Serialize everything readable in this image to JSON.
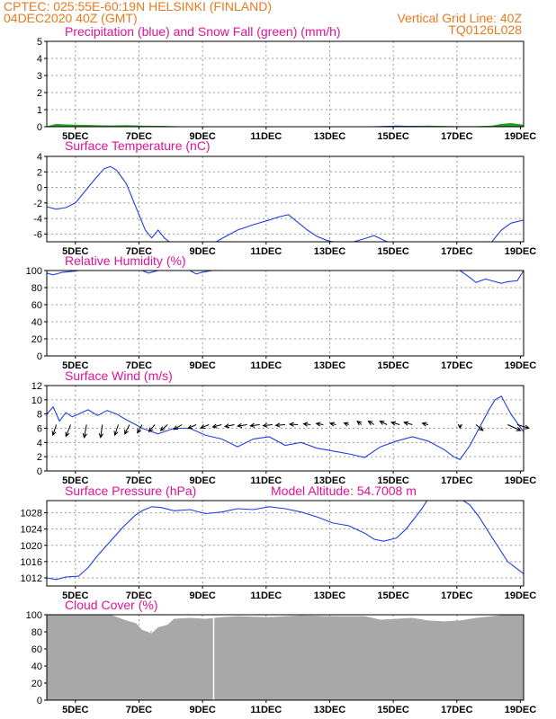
{
  "header": {
    "station": "CPTEC:   025:55E-60:19N   HELSINKI (FINLAND)",
    "run": "04DEC2020 40Z (GMT)",
    "grid_note": "Vertical Grid Line: 40Z",
    "model_code": "TQ0126L028"
  },
  "colors": {
    "blue": "#1f3fe0",
    "green": "#1fa01f",
    "gray": "#a8a8a8",
    "header": "#e87a1e",
    "title": "#e0129a"
  },
  "chart_data": [
    {
      "id": "precip",
      "type": "area",
      "title": "Precipitation (blue) and Snow Fall (green) (mm/h)",
      "x_tick_labels": [
        "5DEC",
        "7DEC",
        "9DEC",
        "11DEC",
        "13DEC",
        "15DEC",
        "17DEC",
        "19DEC"
      ],
      "ylim": [
        0,
        5
      ],
      "y_ticks": [
        0,
        1,
        2,
        3,
        4,
        5
      ],
      "series": [
        {
          "color": "green",
          "x": [
            4.0,
            4.3,
            4.6,
            5.0,
            5.5,
            6.0,
            6.5,
            7.0,
            7.5,
            8.0,
            8.5,
            9.0,
            9.5,
            10.0,
            10.5,
            11.0,
            11.5,
            12.0,
            12.5,
            13.0,
            13.5,
            14.0,
            14.5,
            15.0,
            15.5,
            16.0,
            16.5,
            17.0,
            17.5,
            18.0,
            18.3,
            18.6,
            19.0
          ],
          "values": [
            0.02,
            0.15,
            0.12,
            0.1,
            0.08,
            0.06,
            0.08,
            0.05,
            0.04,
            0.02,
            0.0,
            0.0,
            0.0,
            0.0,
            0.0,
            0.0,
            0.0,
            0.0,
            0.0,
            0.0,
            0.0,
            0.0,
            0.0,
            0.05,
            0.03,
            0.05,
            0.03,
            0.02,
            0.02,
            0.05,
            0.15,
            0.2,
            0.1
          ]
        },
        {
          "color": "blue",
          "x": [
            4.0,
            8.0,
            12.0,
            14.0,
            15.0,
            16.0,
            17.0,
            18.5,
            19.0
          ],
          "values": [
            0.0,
            0.0,
            0.0,
            0.0,
            0.05,
            0.02,
            0.0,
            0.02,
            0.0
          ]
        }
      ]
    },
    {
      "id": "temp",
      "type": "line",
      "title": "Surface Temperature (nC)",
      "x_tick_labels": [
        "5DEC",
        "7DEC",
        "9DEC",
        "11DEC",
        "13DEC",
        "15DEC",
        "17DEC",
        "19DEC"
      ],
      "ylim": [
        -7,
        4
      ],
      "y_ticks": [
        -6,
        -4,
        -2,
        0,
        2,
        4
      ],
      "series": [
        {
          "color": "blue",
          "x": [
            4.0,
            4.3,
            4.6,
            4.9,
            5.2,
            5.5,
            5.8,
            6.0,
            6.2,
            6.5,
            6.8,
            7.1,
            7.3,
            7.5,
            7.7,
            8.0,
            8.5,
            9.0,
            9.5,
            10.0,
            10.5,
            11.0,
            11.3,
            11.6,
            11.9,
            12.2,
            12.5,
            12.8,
            13.0,
            13.5,
            14.0,
            14.3,
            14.6,
            15.0,
            16.0,
            17.0,
            17.5,
            18.0,
            18.3,
            18.6,
            19.0
          ],
          "values": [
            -2.5,
            -2.8,
            -2.6,
            -2.0,
            -0.5,
            1.0,
            2.4,
            2.7,
            2.2,
            0.5,
            -2.5,
            -5.5,
            -6.5,
            -5.5,
            -6.5,
            -7.5,
            -8.2,
            -7.8,
            -6.6,
            -5.5,
            -4.8,
            -4.2,
            -3.8,
            -3.5,
            -4.5,
            -5.5,
            -6.3,
            -6.8,
            -7.0,
            -7.2,
            -6.6,
            -6.2,
            -6.8,
            -7.5,
            -8.0,
            -8.6,
            -8.8,
            -7.0,
            -5.5,
            -4.6,
            -4.2
          ]
        }
      ]
    },
    {
      "id": "rh",
      "type": "line",
      "title": "Relative Humidity (%)",
      "x_tick_labels": [
        "5DEC",
        "7DEC",
        "9DEC",
        "11DEC",
        "13DEC",
        "15DEC",
        "17DEC",
        "19DEC"
      ],
      "ylim": [
        0,
        100
      ],
      "y_ticks": [
        0,
        20,
        40,
        60,
        80,
        100
      ],
      "series": [
        {
          "color": "blue",
          "x": [
            4.0,
            4.2,
            4.5,
            4.8,
            5.0,
            7.0,
            7.2,
            7.5,
            8.5,
            8.7,
            8.9,
            9.2,
            10.0,
            17.0,
            17.3,
            17.5,
            17.8,
            18.0,
            18.3,
            18.5,
            18.8,
            19.0
          ],
          "values": [
            97,
            95,
            98,
            99,
            100,
            100,
            97,
            100,
            100,
            96,
            98,
            100,
            100,
            100,
            92,
            86,
            90,
            88,
            85,
            87,
            88,
            100
          ]
        }
      ]
    },
    {
      "id": "wind",
      "type": "line",
      "title": "Surface Wind (m/s)",
      "x_tick_labels": [
        "5DEC",
        "7DEC",
        "9DEC",
        "11DEC",
        "13DEC",
        "15DEC",
        "17DEC",
        "19DEC"
      ],
      "ylim": [
        0,
        12
      ],
      "y_ticks": [
        0,
        2,
        4,
        6,
        8,
        10,
        12
      ],
      "series": [
        {
          "color": "blue",
          "x": [
            4.0,
            4.2,
            4.4,
            4.6,
            4.8,
            5.0,
            5.3,
            5.6,
            5.9,
            6.2,
            6.5,
            6.8,
            7.0,
            7.5,
            8.0,
            8.5,
            9.0,
            9.5,
            10.0,
            10.5,
            11.0,
            11.5,
            12.0,
            12.5,
            13.0,
            13.5,
            14.0,
            14.5,
            15.0,
            15.5,
            16.0,
            16.5,
            16.8,
            17.0,
            17.3,
            17.6,
            17.9,
            18.1,
            18.3,
            18.6,
            19.0
          ],
          "values": [
            8.0,
            9.0,
            7.0,
            8.2,
            7.6,
            8.0,
            8.6,
            7.8,
            8.5,
            8.0,
            7.2,
            6.5,
            6.0,
            5.2,
            6.0,
            6.0,
            5.0,
            4.5,
            3.4,
            4.5,
            4.8,
            3.6,
            4.0,
            3.2,
            2.8,
            2.4,
            1.9,
            3.4,
            4.2,
            4.8,
            4.2,
            3.0,
            2.0,
            1.6,
            3.5,
            6.0,
            8.5,
            10.0,
            10.5,
            8.0,
            5.5
          ]
        }
      ],
      "wind_arrows": [
        {
          "x": 4.3,
          "u": -1.5,
          "v": -4.5
        },
        {
          "x": 4.75,
          "u": -2.0,
          "v": -5.0
        },
        {
          "x": 5.25,
          "u": -1.0,
          "v": -5.5
        },
        {
          "x": 5.75,
          "u": -0.8,
          "v": -5.5
        },
        {
          "x": 6.25,
          "u": -1.5,
          "v": -4.5
        },
        {
          "x": 6.6,
          "u": -2.0,
          "v": -4.0
        },
        {
          "x": 7.0,
          "u": -2.0,
          "v": -3.5
        },
        {
          "x": 7.4,
          "u": -2.5,
          "v": -3.0
        },
        {
          "x": 7.8,
          "u": -3.0,
          "v": -2.5
        },
        {
          "x": 8.25,
          "u": -3.5,
          "v": -2.0
        },
        {
          "x": 8.7,
          "u": -3.5,
          "v": -1.6
        },
        {
          "x": 9.1,
          "u": -3.5,
          "v": -1.4
        },
        {
          "x": 9.5,
          "u": -3.8,
          "v": -1.0
        },
        {
          "x": 9.9,
          "u": -4.0,
          "v": -0.8
        },
        {
          "x": 10.3,
          "u": -4.0,
          "v": -0.6
        },
        {
          "x": 10.7,
          "u": -4.0,
          "v": -0.5
        },
        {
          "x": 11.1,
          "u": -4.0,
          "v": -0.4
        },
        {
          "x": 11.5,
          "u": -4.0,
          "v": -0.3
        },
        {
          "x": 11.9,
          "u": -3.5,
          "v": 0.2
        },
        {
          "x": 12.3,
          "u": -3.0,
          "v": 0.4
        },
        {
          "x": 12.7,
          "u": -3.0,
          "v": 0.5
        },
        {
          "x": 13.1,
          "u": -2.5,
          "v": 0.6
        },
        {
          "x": 13.5,
          "u": -2.0,
          "v": 0.8
        },
        {
          "x": 13.9,
          "u": -1.8,
          "v": 1.5
        },
        {
          "x": 14.3,
          "u": -2.5,
          "v": 1.5
        },
        {
          "x": 14.7,
          "u": -3.0,
          "v": 1.5
        },
        {
          "x": 15.1,
          "u": -3.5,
          "v": 1.0
        },
        {
          "x": 15.5,
          "u": -3.5,
          "v": 1.0
        },
        {
          "x": 16.0,
          "u": -2.5,
          "v": 0.6
        },
        {
          "x": 17.0,
          "u": 0.0,
          "v": -1.5
        },
        {
          "x": 17.5,
          "u": 3.0,
          "v": -2.5
        },
        {
          "x": 18.5,
          "u": 5.5,
          "v": -2.5
        },
        {
          "x": 18.8,
          "u": 5.0,
          "v": -1.5
        }
      ]
    },
    {
      "id": "pressure",
      "type": "line",
      "title": "Surface Pressure (hPa)",
      "annotation": "Model Altitude: 54.7008 m",
      "x_tick_labels": [
        "5DEC",
        "7DEC",
        "9DEC",
        "11DEC",
        "13DEC",
        "15DEC",
        "17DEC",
        "19DEC"
      ],
      "ylim": [
        1010,
        1031
      ],
      "y_ticks": [
        1012,
        1016,
        1020,
        1024,
        1028
      ],
      "series": [
        {
          "color": "blue",
          "x": [
            4.0,
            4.3,
            4.6,
            5.0,
            5.3,
            5.6,
            6.0,
            6.4,
            6.8,
            7.0,
            7.3,
            7.6,
            8.0,
            8.5,
            9.0,
            9.5,
            10.0,
            10.5,
            11.0,
            11.5,
            12.0,
            12.5,
            13.0,
            13.5,
            14.0,
            14.3,
            14.6,
            15.0,
            15.3,
            15.6,
            15.8,
            16.0,
            17.0,
            17.3,
            17.6,
            18.0,
            18.5,
            19.0
          ],
          "values": [
            1012,
            1011.6,
            1012.2,
            1012.4,
            1014.5,
            1017.5,
            1021,
            1024.5,
            1027.5,
            1028.5,
            1029.5,
            1029.3,
            1028.5,
            1028.8,
            1027.8,
            1028.2,
            1029.0,
            1028.8,
            1029.5,
            1029.0,
            1028.2,
            1027.0,
            1025.5,
            1024.8,
            1023.0,
            1021.5,
            1021.0,
            1021.8,
            1024.0,
            1027.0,
            1029.0,
            1031.5,
            1031.5,
            1030.0,
            1027.0,
            1022.0,
            1016.0,
            1013.0
          ]
        }
      ]
    },
    {
      "id": "cloud",
      "type": "bar",
      "title": "Cloud Cover (%)",
      "x_tick_labels": [
        "5DEC",
        "7DEC",
        "9DEC",
        "11DEC",
        "13DEC",
        "15DEC",
        "17DEC",
        "19DEC"
      ],
      "ylim": [
        0,
        100
      ],
      "y_ticks": [
        0,
        20,
        40,
        60,
        80,
        100
      ],
      "series": [
        {
          "color": "gray",
          "x": [
            4.0,
            5.0,
            6.0,
            6.5,
            6.8,
            7.0,
            7.3,
            7.5,
            7.8,
            8.0,
            8.5,
            9.0,
            9.5,
            10.0,
            11.0,
            12.0,
            13.0,
            14.0,
            14.5,
            15.0,
            15.5,
            16.0,
            16.5,
            17.0,
            17.5,
            18.0,
            18.5,
            19.0
          ],
          "values": [
            100,
            100,
            100,
            93,
            90,
            82,
            78,
            85,
            88,
            95,
            96,
            95,
            97,
            98,
            97,
            99,
            98,
            98,
            94,
            95,
            96,
            93,
            92,
            93,
            96,
            98,
            100,
            100
          ]
        }
      ]
    }
  ]
}
